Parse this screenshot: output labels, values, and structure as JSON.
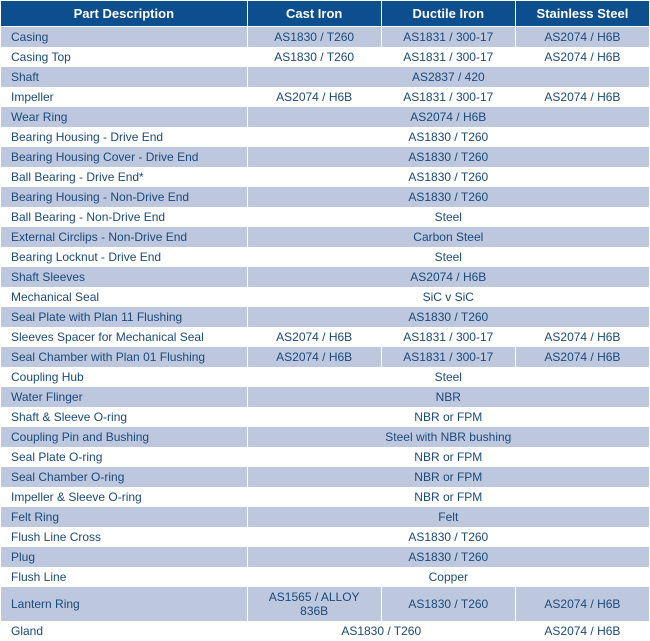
{
  "table": {
    "columns": [
      "Part Description",
      "Cast Iron",
      "Ductile Iron",
      "Stainless Steel"
    ],
    "header_bg": "#0d4e8f",
    "header_color": "#ffffff",
    "row_odd_bg": "#bdc8df",
    "row_even_bg": "#ffffff",
    "text_color": "#1a4a7a",
    "rows": [
      {
        "desc": "Casing",
        "cells": [
          "AS1830 / T260",
          "AS1831 / 300-17",
          "AS2074 / H6B"
        ]
      },
      {
        "desc": "Casing Top",
        "cells": [
          "AS1830 / T260",
          "AS1831 / 300-17",
          "AS2074 / H6B"
        ]
      },
      {
        "desc": "Shaft",
        "cells": [],
        "merged": "AS2837 / 420"
      },
      {
        "desc": "Impeller",
        "cells": [
          "AS2074 / H6B",
          "AS1831 / 300-17",
          "AS2074 / H6B"
        ]
      },
      {
        "desc": "Wear Ring",
        "cells": [],
        "merged": "AS2074 / H6B"
      },
      {
        "desc": "Bearing Housing - Drive End",
        "cells": [],
        "merged": "AS1830 / T260"
      },
      {
        "desc": "Bearing Housing Cover - Drive End",
        "cells": [],
        "merged": "AS1830 / T260"
      },
      {
        "desc": "Ball Bearing - Drive End*",
        "cells": [],
        "merged": "AS1830 / T260"
      },
      {
        "desc": "Bearing Housing - Non-Drive End",
        "cells": [],
        "merged": "AS1830 / T260"
      },
      {
        "desc": "Ball Bearing - Non-Drive End",
        "cells": [],
        "merged": "Steel"
      },
      {
        "desc": "External Circlips - Non-Drive End",
        "cells": [],
        "merged": "Carbon Steel"
      },
      {
        "desc": "Bearing Locknut - Drive End",
        "cells": [],
        "merged": "Steel"
      },
      {
        "desc": "Shaft Sleeves",
        "cells": [],
        "merged": "AS2074 / H6B"
      },
      {
        "desc": "Mechanical Seal",
        "cells": [],
        "merged": "SiC v SiC"
      },
      {
        "desc": "Seal Plate with Plan 11 Flushing",
        "cells": [],
        "merged": "AS1830 / T260"
      },
      {
        "desc": "Sleeves Spacer for Mechanical Seal",
        "cells": [
          "AS2074 / H6B",
          "AS1831 / 300-17",
          "AS2074 / H6B"
        ]
      },
      {
        "desc": "Seal Chamber with Plan 01 Flushing",
        "cells": [
          "AS2074 / H6B",
          "AS1831 / 300-17",
          "AS2074 / H6B"
        ]
      },
      {
        "desc": "Coupling Hub",
        "cells": [],
        "merged": "Steel"
      },
      {
        "desc": "Water Flinger",
        "cells": [],
        "merged": "NBR"
      },
      {
        "desc": "Shaft & Sleeve O-ring",
        "cells": [],
        "merged": "NBR or FPM"
      },
      {
        "desc": "Coupling Pin and Bushing",
        "cells": [],
        "merged": "Steel with NBR bushing"
      },
      {
        "desc": "Seal Plate O-ring",
        "cells": [],
        "merged": "NBR or FPM"
      },
      {
        "desc": "Seal Chamber O-ring",
        "cells": [],
        "merged": "NBR or FPM"
      },
      {
        "desc": "Impeller & Sleeve O-ring",
        "cells": [],
        "merged": "NBR or FPM"
      },
      {
        "desc": "Felt Ring",
        "cells": [],
        "merged": "Felt"
      },
      {
        "desc": "Flush Line Cross",
        "cells": [],
        "merged": "AS1830 / T260"
      },
      {
        "desc": "Plug",
        "cells": [],
        "merged": "AS1830 / T260"
      },
      {
        "desc": "Flush Line",
        "cells": [],
        "merged": "Copper"
      },
      {
        "desc": "Lantern Ring",
        "cells": [
          "AS1565 / ALLOY 836B",
          "AS1830 / T260",
          "AS2074 / H6B"
        ]
      },
      {
        "desc": "Gland",
        "cells": [],
        "merged2": "AS1830 / T260",
        "last": "AS2074 / H6B"
      }
    ]
  }
}
